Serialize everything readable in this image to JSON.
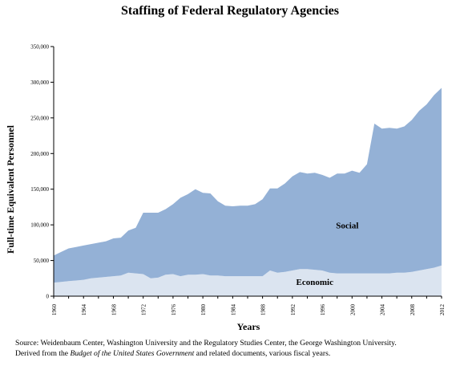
{
  "chart_data": {
    "type": "area",
    "stacked": true,
    "title": "Staffing of Federal Regulatory Agencies",
    "xlabel": "Years",
    "ylabel": "Full-time Equivalent Personnel",
    "xlim": [
      1960,
      2012
    ],
    "ylim": [
      0,
      350000
    ],
    "x_ticks": [
      1960,
      1964,
      1968,
      1972,
      1976,
      1980,
      1984,
      1988,
      1992,
      1996,
      2000,
      2004,
      2008,
      2012
    ],
    "y_ticks": [
      0,
      50000,
      100000,
      150000,
      200000,
      250000,
      300000,
      350000
    ],
    "y_tick_labels": [
      "0",
      "50,000",
      "100,000",
      "150,000",
      "200,000",
      "250,000",
      "300,000",
      "350,000"
    ],
    "grid": false,
    "legend": "none",
    "x": [
      1960,
      1961,
      1962,
      1963,
      1964,
      1965,
      1966,
      1967,
      1968,
      1969,
      1970,
      1971,
      1972,
      1973,
      1974,
      1975,
      1976,
      1977,
      1978,
      1979,
      1980,
      1981,
      1982,
      1983,
      1984,
      1985,
      1986,
      1987,
      1988,
      1989,
      1990,
      1991,
      1992,
      1993,
      1994,
      1995,
      1996,
      1997,
      1998,
      1999,
      2000,
      2001,
      2002,
      2003,
      2004,
      2005,
      2006,
      2007,
      2008,
      2009,
      2010,
      2011,
      2012
    ],
    "series": [
      {
        "name": "Economic",
        "color": "#dbe4f0",
        "values": [
          19000,
          20000,
          21000,
          22000,
          23000,
          25000,
          26000,
          27000,
          28000,
          29000,
          33000,
          32000,
          31000,
          25000,
          26000,
          30000,
          31000,
          28000,
          30000,
          30000,
          31000,
          29000,
          29000,
          28000,
          28000,
          28000,
          28000,
          28000,
          28000,
          36000,
          33000,
          34000,
          36000,
          38000,
          38000,
          37000,
          36000,
          33000,
          32000,
          32000,
          32000,
          32000,
          32000,
          32000,
          32000,
          32000,
          33000,
          33000,
          34000,
          36000,
          38000,
          40000,
          43000
        ]
      },
      {
        "name": "Social",
        "color": "#94b1d6",
        "values": [
          38000,
          42000,
          46000,
          47000,
          48000,
          48000,
          49000,
          50000,
          53000,
          53000,
          59000,
          64000,
          86000,
          92000,
          91000,
          92000,
          98000,
          110000,
          113000,
          120000,
          114000,
          115000,
          104000,
          99000,
          98000,
          99000,
          99000,
          101000,
          108000,
          115000,
          118000,
          124000,
          132000,
          136000,
          134000,
          136000,
          134000,
          133000,
          140000,
          140000,
          144000,
          141000,
          153000,
          210000,
          203000,
          204000,
          202000,
          205000,
          213000,
          224000,
          231000,
          242000,
          249000
        ]
      }
    ]
  },
  "source": {
    "line1": "Source:    Weidenbaum Center, Washington University and the Regulatory Studies Center, the George Washington University.",
    "line2_pre": "Derived from the ",
    "line2_italic": "Budget of the United States Government",
    "line2_post": " and related documents, various fiscal years."
  }
}
